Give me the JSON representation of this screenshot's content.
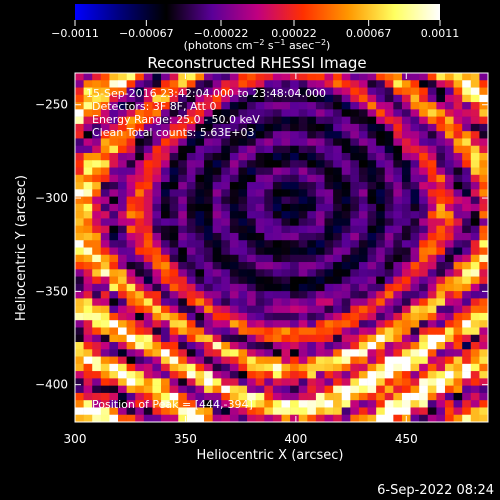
{
  "chart_data": {
    "type": "heatmap",
    "title": "Reconstructed RHESSI Image",
    "xlabel": "Heliocentric X (arcsec)",
    "ylabel": "Heliocentric Y (arcsec)",
    "xlim": [
      300,
      487
    ],
    "ylim": [
      -420,
      -233
    ],
    "x_ticks": [
      300,
      350,
      400,
      450
    ],
    "x_tick_labels": [
      "300",
      "350",
      "400",
      "450"
    ],
    "y_ticks": [
      -250,
      -300,
      -350,
      -400
    ],
    "y_tick_labels": [
      "−250",
      "−300",
      "−350",
      "−400"
    ],
    "grid": false,
    "colorbar": {
      "location": "top",
      "range": [
        -0.0011,
        0.0011
      ],
      "ticks": [
        -0.0011,
        -0.00067,
        -0.00022,
        0.00022,
        0.00067,
        0.0011
      ],
      "tick_labels": [
        "−0.0011",
        "−0.00067",
        "−0.00022",
        "0.00022",
        "0.00067",
        "0.0011"
      ],
      "units_parts": [
        "(photons cm",
        "−2",
        " s",
        "−1",
        " asec",
        "−2",
        ")"
      ],
      "colors": [
        "#0000ff",
        "#00007a",
        "#000000",
        "#5a0098",
        "#c00080",
        "#ff3000",
        "#ff9800",
        "#ffff60",
        "#ffffff"
      ]
    },
    "annotations": [
      "15-Sep-2016 23:42:04.000 to 23:48:04.000",
      "Detectors: 3F 8F, Att 0",
      "Energy Range: 25.0 - 50.0 keV",
      "Clean     Total counts: 5.63E+03"
    ],
    "peak_label": "Position of Peak = [444,-394]",
    "peak": [
      444,
      -394
    ]
  },
  "footer": {
    "date": "6-Sep-2022 08:24"
  }
}
